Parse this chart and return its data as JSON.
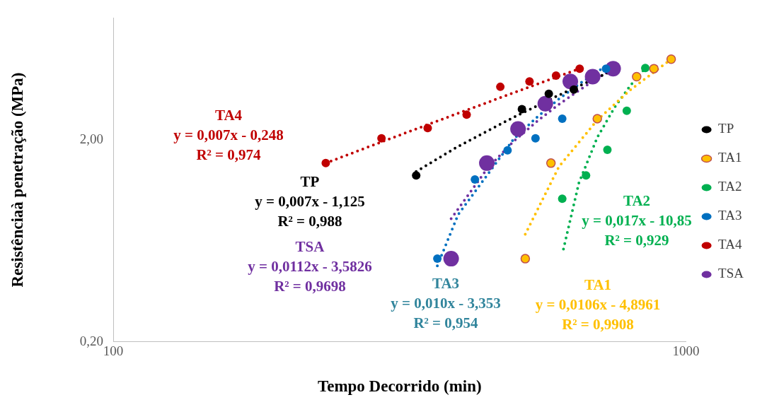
{
  "chart_data": {
    "type": "scatter",
    "xlabel": "Tempo Decorrido (min)",
    "ylabel": "Resistênciaà penetração (MPa)",
    "log": "xy",
    "grid": false,
    "legend": "right",
    "marker": "circle",
    "xlim": [
      100,
      1000
    ],
    "xticks": [
      100,
      1000
    ],
    "ylim": [
      0.2,
      8
    ],
    "yticks": [
      {
        "value": 0.2,
        "label": "0,20"
      },
      {
        "value": 2,
        "label": "2,00"
      }
    ],
    "series": [
      {
        "name": "TP",
        "color": "#000000",
        "x": [
          338,
          517,
          576,
          637
        ],
        "values": [
          1.33,
          2.83,
          3.37,
          3.54
        ]
      },
      {
        "name": "TA1",
        "color": "#ffc000",
        "x": [
          524,
          581,
          700,
          820,
          879,
          942
        ],
        "values": [
          0.515,
          1.53,
          2.54,
          4.1,
          4.49,
          5.0
        ]
      },
      {
        "name": "TA2",
        "color": "#00b050",
        "x": [
          608,
          669,
          729,
          788,
          849
        ],
        "values": [
          1.02,
          1.33,
          1.78,
          2.78,
          4.52
        ]
      },
      {
        "name": "TA3",
        "color": "#0070c0",
        "x": [
          368,
          428,
          488,
          546,
          608,
          725
        ],
        "values": [
          0.515,
          1.27,
          1.77,
          2.03,
          2.54,
          4.49
        ]
      },
      {
        "name": "TA4",
        "color": "#c00000",
        "x": [
          235,
          294,
          354,
          414,
          474,
          533,
          593,
          652
        ],
        "values": [
          1.53,
          2.03,
          2.28,
          2.66,
          3.65,
          3.88,
          4.15,
          4.49
        ]
      },
      {
        "name": "TSA",
        "color": "#7030a0",
        "x": [
          389,
          449,
          509,
          568,
          628,
          687,
          746
        ],
        "values": [
          0.515,
          1.53,
          2.26,
          3.01,
          3.88,
          4.1,
          4.49
        ]
      },
      {
        "type": "line",
        "color": "#000000",
        "marker": "none",
        "line_style": "dotted",
        "x": [
          338,
          400,
          500,
          600,
          746
        ],
        "values": [
          1.39,
          1.85,
          2.58,
          3.32,
          4.4
        ]
      },
      {
        "type": "line",
        "color": "#ffc000",
        "marker": "none",
        "line_style": "dotted",
        "x": [
          524,
          600,
          700,
          800,
          942
        ],
        "values": [
          0.68,
          1.47,
          2.5,
          3.53,
          5.0
        ]
      },
      {
        "type": "line",
        "color": "#00b050",
        "marker": "none",
        "line_style": "dotted",
        "x": [
          611,
          650,
          700,
          750,
          800,
          849
        ],
        "values": [
          0.575,
          1.22,
          2.05,
          2.88,
          3.71,
          4.52
        ]
      },
      {
        "type": "line",
        "color": "#0070c0",
        "marker": "none",
        "line_style": "dotted",
        "x": [
          368,
          400,
          500,
          550,
          600,
          650,
          725
        ],
        "values": [
          0.475,
          0.85,
          2.01,
          2.59,
          3.18,
          3.76,
          4.63
        ]
      },
      {
        "type": "line",
        "color": "#c00000",
        "marker": "none",
        "line_style": "dotted",
        "x": [
          235,
          300,
          400,
          500,
          600,
          652
        ],
        "values": [
          1.53,
          1.99,
          2.7,
          3.41,
          4.12,
          4.49
        ]
      },
      {
        "type": "line",
        "color": "#7030a0",
        "marker": "none",
        "line_style": "dotted",
        "x": [
          389,
          450,
          500,
          550,
          600,
          650,
          700,
          746
        ],
        "values": [
          0.813,
          1.44,
          1.96,
          2.47,
          2.99,
          3.5,
          4.02,
          4.49
        ]
      }
    ],
    "annotations": [
      "TA4",
      "y = 0,007x - 0,248",
      "R² = 0,974",
      "TP",
      "y = 0,007x - 1,125",
      "R² = 0,988",
      "TSA",
      "y = 0,0112x - 3,5826",
      "R² = 0,9698",
      "TA3",
      "y = 0,010x - 3,353",
      "R² = 0,954",
      "TA1",
      "y = 0,0106x - 4,8961",
      "R² = 0,9908",
      "TA2",
      "y = 0,017x - 10,85",
      "R² = 0,929"
    ]
  }
}
